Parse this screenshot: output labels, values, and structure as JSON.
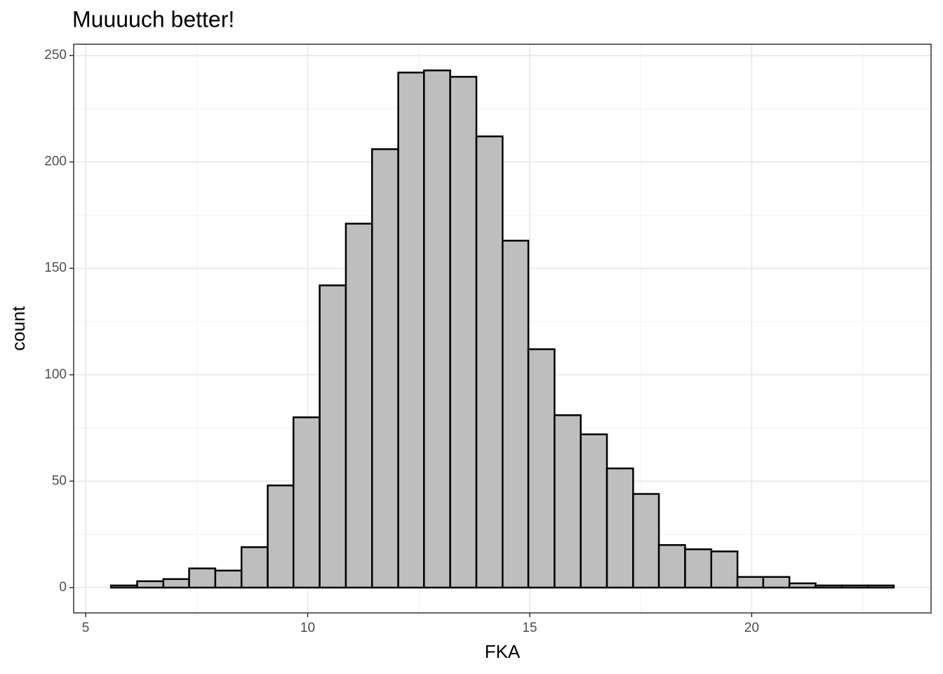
{
  "chart_data": {
    "type": "histogram",
    "title": "Muuuuch better!",
    "x_label": "FKA",
    "y_label": "count",
    "bins": [
      5.57,
      6.16,
      6.75,
      7.33,
      7.92,
      8.51,
      9.1,
      9.68,
      10.27,
      10.86,
      11.45,
      12.04,
      12.62,
      13.21,
      13.8,
      14.39,
      14.97,
      15.56,
      16.15,
      16.74,
      17.33,
      17.91,
      18.5,
      19.09,
      19.68,
      20.26,
      20.85,
      21.44,
      22.03,
      22.62,
      23.2
    ],
    "counts": [
      1,
      3,
      4,
      9,
      8,
      19,
      48,
      80,
      142,
      171,
      206,
      242,
      243,
      240,
      212,
      163,
      112,
      81,
      72,
      56,
      44,
      20,
      18,
      17,
      5,
      5,
      2,
      1,
      1,
      1
    ],
    "color": "#bebebe",
    "edge_color": "#000000",
    "xlim": [
      4.73,
      24.04
    ],
    "ylim": [
      -11.9,
      255.3
    ],
    "xticks": [
      5,
      10,
      15,
      20
    ],
    "yticks": [
      0,
      50,
      100,
      150,
      200,
      250
    ],
    "x_minor_ticks": [
      7.5,
      12.5,
      17.5,
      22.5
    ],
    "y_minor_ticks": [
      25,
      75,
      125,
      175,
      225
    ],
    "grid": true
  }
}
